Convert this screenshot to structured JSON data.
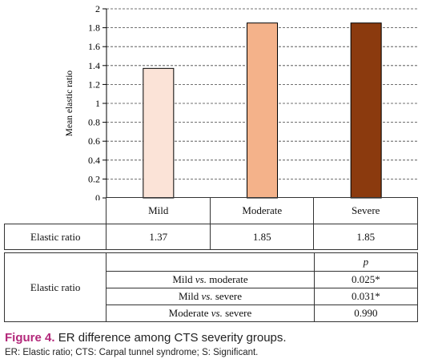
{
  "chart_data": {
    "type": "bar",
    "categories": [
      "Mild",
      "Moderate",
      "Severe"
    ],
    "values": [
      1.37,
      1.85,
      1.85
    ],
    "bar_colors": [
      "#fbe3d7",
      "#f4b28a",
      "#8b3a0e"
    ],
    "ylabel": "Mean elastic ratio",
    "ylim": [
      0,
      2
    ],
    "yticks": [
      "0",
      "0.2",
      "0.4",
      "0.6",
      "0.8",
      "1",
      "1.2",
      "1.4",
      "1.6",
      "1.8",
      "2"
    ],
    "grid": true,
    "grid_style": "dashed"
  },
  "values_table": {
    "row_label": "Elastic ratio",
    "columns": [
      "Mild",
      "Moderate",
      "Severe"
    ],
    "values": [
      "1.37",
      "1.85",
      "1.85"
    ]
  },
  "pvalue_table": {
    "row_label": "Elastic ratio",
    "p_header": "p",
    "rows": [
      {
        "a": "Mild",
        "vs": "vs.",
        "b": "moderate",
        "p": "0.025*"
      },
      {
        "a": "Mild",
        "vs": "vs.",
        "b": "severe",
        "p": "0.031*"
      },
      {
        "a": "Moderate",
        "vs": "vs.",
        "b": "severe",
        "p": "0.990"
      }
    ]
  },
  "caption": {
    "figure_label": "Figure 4.",
    "text": "ER difference among CTS severity groups."
  },
  "footnote": "ER: Elastic ratio; CTS: Carpal tunnel syndrome; S: Significant."
}
